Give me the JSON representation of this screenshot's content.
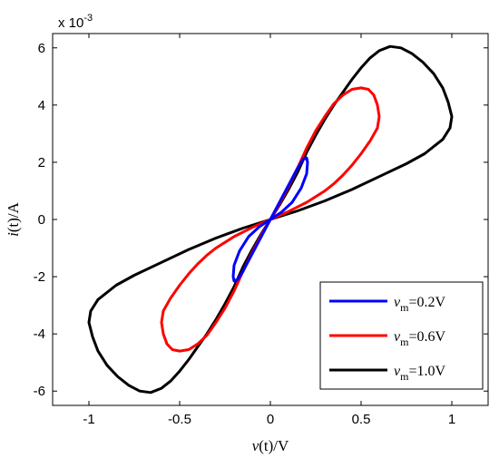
{
  "chart_data": {
    "type": "line",
    "title": "",
    "xlabel": "v(t)/V",
    "ylabel": "i(t)/A",
    "xlabel_parts": {
      "var": "v",
      "arg": "(t)",
      "unit": "/V"
    },
    "ylabel_parts": {
      "var": "i",
      "arg": "(t)",
      "unit": "/A"
    },
    "y_exponent_label": {
      "base": "x 10",
      "power": "-3"
    },
    "xlim": [
      -1.2,
      1.2
    ],
    "ylim": [
      -6.5,
      6.5
    ],
    "xticks": [
      -1,
      -0.5,
      0,
      0.5,
      1
    ],
    "xtick_labels": [
      "-1",
      "-0.5",
      "0",
      "0.5",
      "1"
    ],
    "yticks": [
      -6,
      -4,
      -2,
      0,
      2,
      4,
      6
    ],
    "ytick_labels": [
      "-6",
      "-4",
      "-2",
      "0",
      "2",
      "4",
      "6"
    ],
    "grid": false,
    "legend_position": "bottom-right",
    "series": [
      {
        "name": "vm=0.2V",
        "legend": {
          "var": "v",
          "sub": "m",
          "value": "=0.2V"
        },
        "color": "#0000ff",
        "points": [
          [
            0,
            0
          ],
          [
            0.05,
            0.6
          ],
          [
            0.1,
            1.2
          ],
          [
            0.15,
            1.8
          ],
          [
            0.18,
            2.1
          ],
          [
            0.2,
            2.15
          ],
          [
            0.205,
            2.0
          ],
          [
            0.2,
            1.6
          ],
          [
            0.17,
            1.1
          ],
          [
            0.12,
            0.6
          ],
          [
            0.06,
            0.25
          ],
          [
            0,
            0
          ],
          [
            -0.05,
            -0.6
          ],
          [
            -0.1,
            -1.2
          ],
          [
            -0.15,
            -1.8
          ],
          [
            -0.18,
            -2.1
          ],
          [
            -0.2,
            -2.15
          ],
          [
            -0.205,
            -2.0
          ],
          [
            -0.2,
            -1.6
          ],
          [
            -0.17,
            -1.1
          ],
          [
            -0.12,
            -0.6
          ],
          [
            -0.06,
            -0.25
          ],
          [
            0,
            0
          ]
        ]
      },
      {
        "name": "vm=0.6V",
        "legend": {
          "var": "v",
          "sub": "m",
          "value": "=0.6V"
        },
        "color": "#ff0000",
        "points": [
          [
            0,
            0
          ],
          [
            0.05,
            0.55
          ],
          [
            0.1,
            1.15
          ],
          [
            0.15,
            1.8
          ],
          [
            0.2,
            2.5
          ],
          [
            0.25,
            3.1
          ],
          [
            0.3,
            3.6
          ],
          [
            0.35,
            4.05
          ],
          [
            0.4,
            4.35
          ],
          [
            0.45,
            4.55
          ],
          [
            0.5,
            4.6
          ],
          [
            0.54,
            4.55
          ],
          [
            0.57,
            4.35
          ],
          [
            0.59,
            4.0
          ],
          [
            0.6,
            3.6
          ],
          [
            0.59,
            3.2
          ],
          [
            0.55,
            2.75
          ],
          [
            0.5,
            2.3
          ],
          [
            0.45,
            1.9
          ],
          [
            0.4,
            1.55
          ],
          [
            0.35,
            1.25
          ],
          [
            0.3,
            1.0
          ],
          [
            0.2,
            0.6
          ],
          [
            0.1,
            0.28
          ],
          [
            0,
            0
          ],
          [
            -0.05,
            -0.55
          ],
          [
            -0.1,
            -1.15
          ],
          [
            -0.15,
            -1.8
          ],
          [
            -0.2,
            -2.5
          ],
          [
            -0.25,
            -3.1
          ],
          [
            -0.3,
            -3.6
          ],
          [
            -0.35,
            -4.05
          ],
          [
            -0.4,
            -4.35
          ],
          [
            -0.45,
            -4.55
          ],
          [
            -0.5,
            -4.6
          ],
          [
            -0.54,
            -4.55
          ],
          [
            -0.57,
            -4.35
          ],
          [
            -0.59,
            -4.0
          ],
          [
            -0.6,
            -3.6
          ],
          [
            -0.59,
            -3.2
          ],
          [
            -0.55,
            -2.75
          ],
          [
            -0.5,
            -2.3
          ],
          [
            -0.45,
            -1.9
          ],
          [
            -0.4,
            -1.55
          ],
          [
            -0.35,
            -1.25
          ],
          [
            -0.3,
            -1.0
          ],
          [
            -0.2,
            -0.6
          ],
          [
            -0.1,
            -0.28
          ],
          [
            0,
            0
          ]
        ]
      },
      {
        "name": "vm=1.0V",
        "legend": {
          "var": "v",
          "sub": "m",
          "value": "=1.0V"
        },
        "color": "#000000",
        "points": [
          [
            0,
            0
          ],
          [
            0.05,
            0.5
          ],
          [
            0.1,
            1.05
          ],
          [
            0.15,
            1.65
          ],
          [
            0.2,
            2.35
          ],
          [
            0.25,
            2.95
          ],
          [
            0.3,
            3.5
          ],
          [
            0.35,
            4.0
          ],
          [
            0.4,
            4.45
          ],
          [
            0.45,
            4.9
          ],
          [
            0.5,
            5.3
          ],
          [
            0.55,
            5.65
          ],
          [
            0.6,
            5.9
          ],
          [
            0.66,
            6.05
          ],
          [
            0.72,
            6.0
          ],
          [
            0.78,
            5.8
          ],
          [
            0.84,
            5.5
          ],
          [
            0.9,
            5.1
          ],
          [
            0.95,
            4.6
          ],
          [
            0.98,
            4.1
          ],
          [
            1.0,
            3.6
          ],
          [
            0.99,
            3.2
          ],
          [
            0.95,
            2.8
          ],
          [
            0.85,
            2.3
          ],
          [
            0.75,
            1.95
          ],
          [
            0.6,
            1.5
          ],
          [
            0.45,
            1.05
          ],
          [
            0.3,
            0.65
          ],
          [
            0.15,
            0.3
          ],
          [
            0,
            0
          ],
          [
            -0.05,
            -0.5
          ],
          [
            -0.1,
            -1.05
          ],
          [
            -0.15,
            -1.65
          ],
          [
            -0.2,
            -2.35
          ],
          [
            -0.25,
            -2.95
          ],
          [
            -0.3,
            -3.5
          ],
          [
            -0.35,
            -4.0
          ],
          [
            -0.4,
            -4.45
          ],
          [
            -0.45,
            -4.9
          ],
          [
            -0.5,
            -5.3
          ],
          [
            -0.55,
            -5.65
          ],
          [
            -0.6,
            -5.9
          ],
          [
            -0.66,
            -6.05
          ],
          [
            -0.72,
            -6.0
          ],
          [
            -0.78,
            -5.8
          ],
          [
            -0.84,
            -5.5
          ],
          [
            -0.9,
            -5.1
          ],
          [
            -0.95,
            -4.6
          ],
          [
            -0.98,
            -4.1
          ],
          [
            -1.0,
            -3.6
          ],
          [
            -0.99,
            -3.2
          ],
          [
            -0.95,
            -2.8
          ],
          [
            -0.85,
            -2.3
          ],
          [
            -0.75,
            -1.95
          ],
          [
            -0.6,
            -1.5
          ],
          [
            -0.45,
            -1.05
          ],
          [
            -0.3,
            -0.65
          ],
          [
            -0.15,
            -0.3
          ],
          [
            0,
            0
          ]
        ]
      }
    ]
  }
}
